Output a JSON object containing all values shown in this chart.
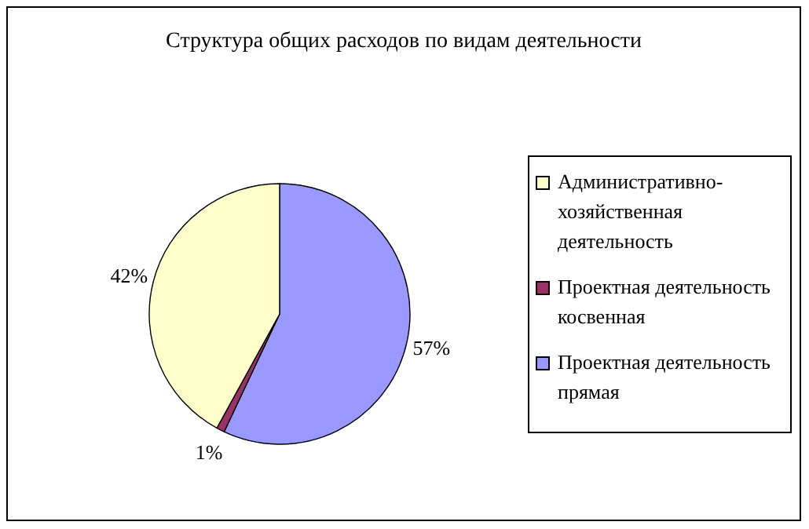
{
  "chart_data": {
    "type": "pie",
    "title": "Структура общих расходов по видам деятельности",
    "categories": [
      "Проектная деятельность прямая",
      "Проектная деятельность косвенная",
      "Административно-хозяйственная деятельность"
    ],
    "values": [
      57,
      1,
      42
    ],
    "colors": [
      "#9999ff",
      "#993366",
      "#ffffcc"
    ],
    "value_labels": [
      "57%",
      "1%",
      "42%"
    ],
    "legend": "right"
  }
}
